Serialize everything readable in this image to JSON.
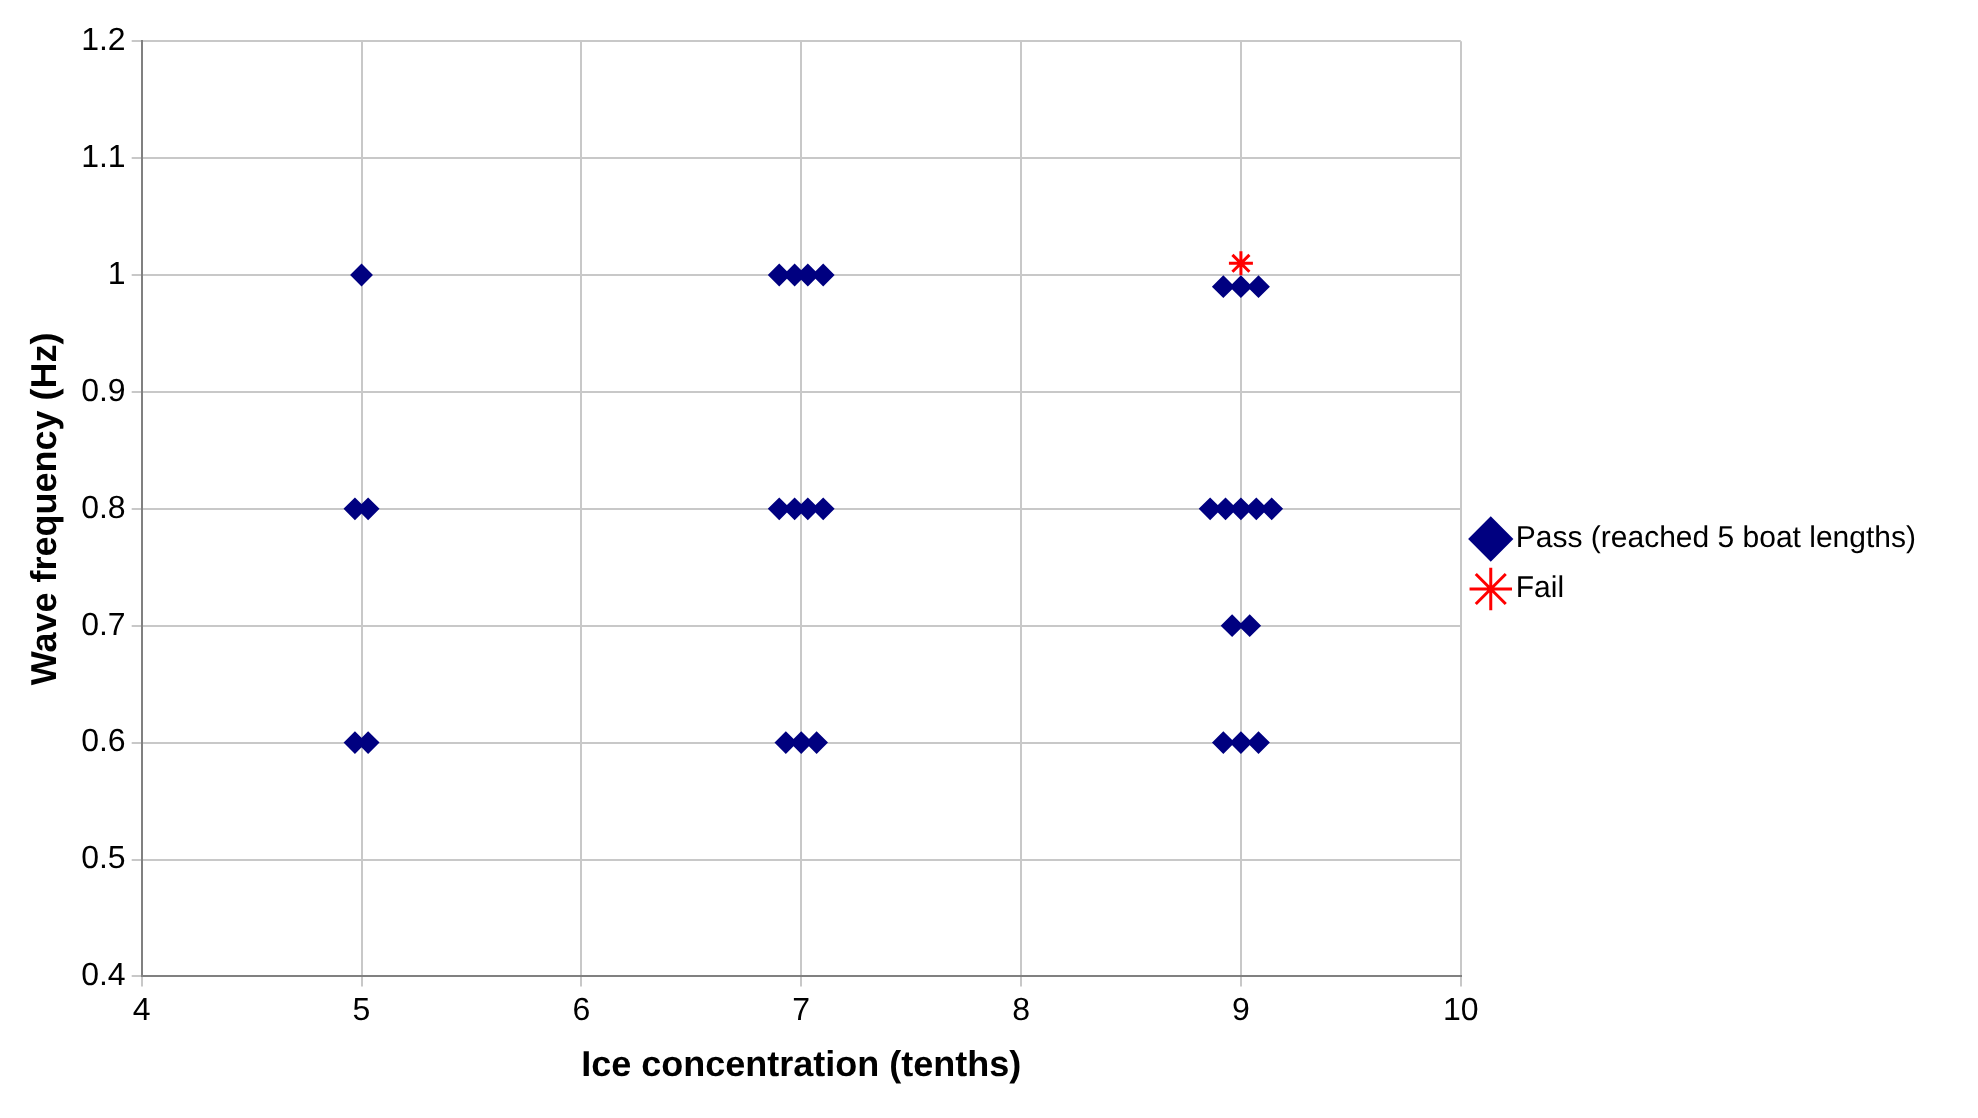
{
  "chart_data": {
    "type": "scatter",
    "xlabel": "Ice concentration (tenths)",
    "ylabel": "Wave frequency (Hz)",
    "xlim": [
      4,
      10
    ],
    "xticks": [
      4,
      5,
      6,
      7,
      8,
      9,
      10
    ],
    "ylim": [
      0.4,
      1.2
    ],
    "yticks": [
      0.4,
      0.5,
      0.6,
      0.7,
      0.8,
      0.9,
      1,
      1.1,
      1.2
    ],
    "grid": true,
    "legend": "right",
    "series": [
      {
        "name": "Pass (reached 5 boat lengths)",
        "color": "#000080",
        "marker": "diamond",
        "x": [
          5,
          4.97,
          5.03,
          4.97,
          5.03,
          6.9,
          6.97,
          7.03,
          7.1,
          6.9,
          6.97,
          7.03,
          7.1,
          6.93,
          7,
          7.07,
          8.92,
          9,
          9.08,
          8.86,
          8.93,
          9,
          9.07,
          9.14,
          8.96,
          9.04,
          8.92,
          9,
          9.08
        ],
        "values": [
          1,
          0.8,
          0.8,
          0.6,
          0.6,
          1,
          1,
          1,
          1,
          0.8,
          0.8,
          0.8,
          0.8,
          0.6,
          0.6,
          0.6,
          0.99,
          0.99,
          0.99,
          0.8,
          0.8,
          0.8,
          0.8,
          0.8,
          0.7,
          0.7,
          0.6,
          0.6,
          0.6
        ]
      },
      {
        "name": "Fail",
        "color": "#ff0000",
        "marker": "cross",
        "x": [
          9
        ],
        "values": [
          1.01
        ]
      }
    ]
  }
}
